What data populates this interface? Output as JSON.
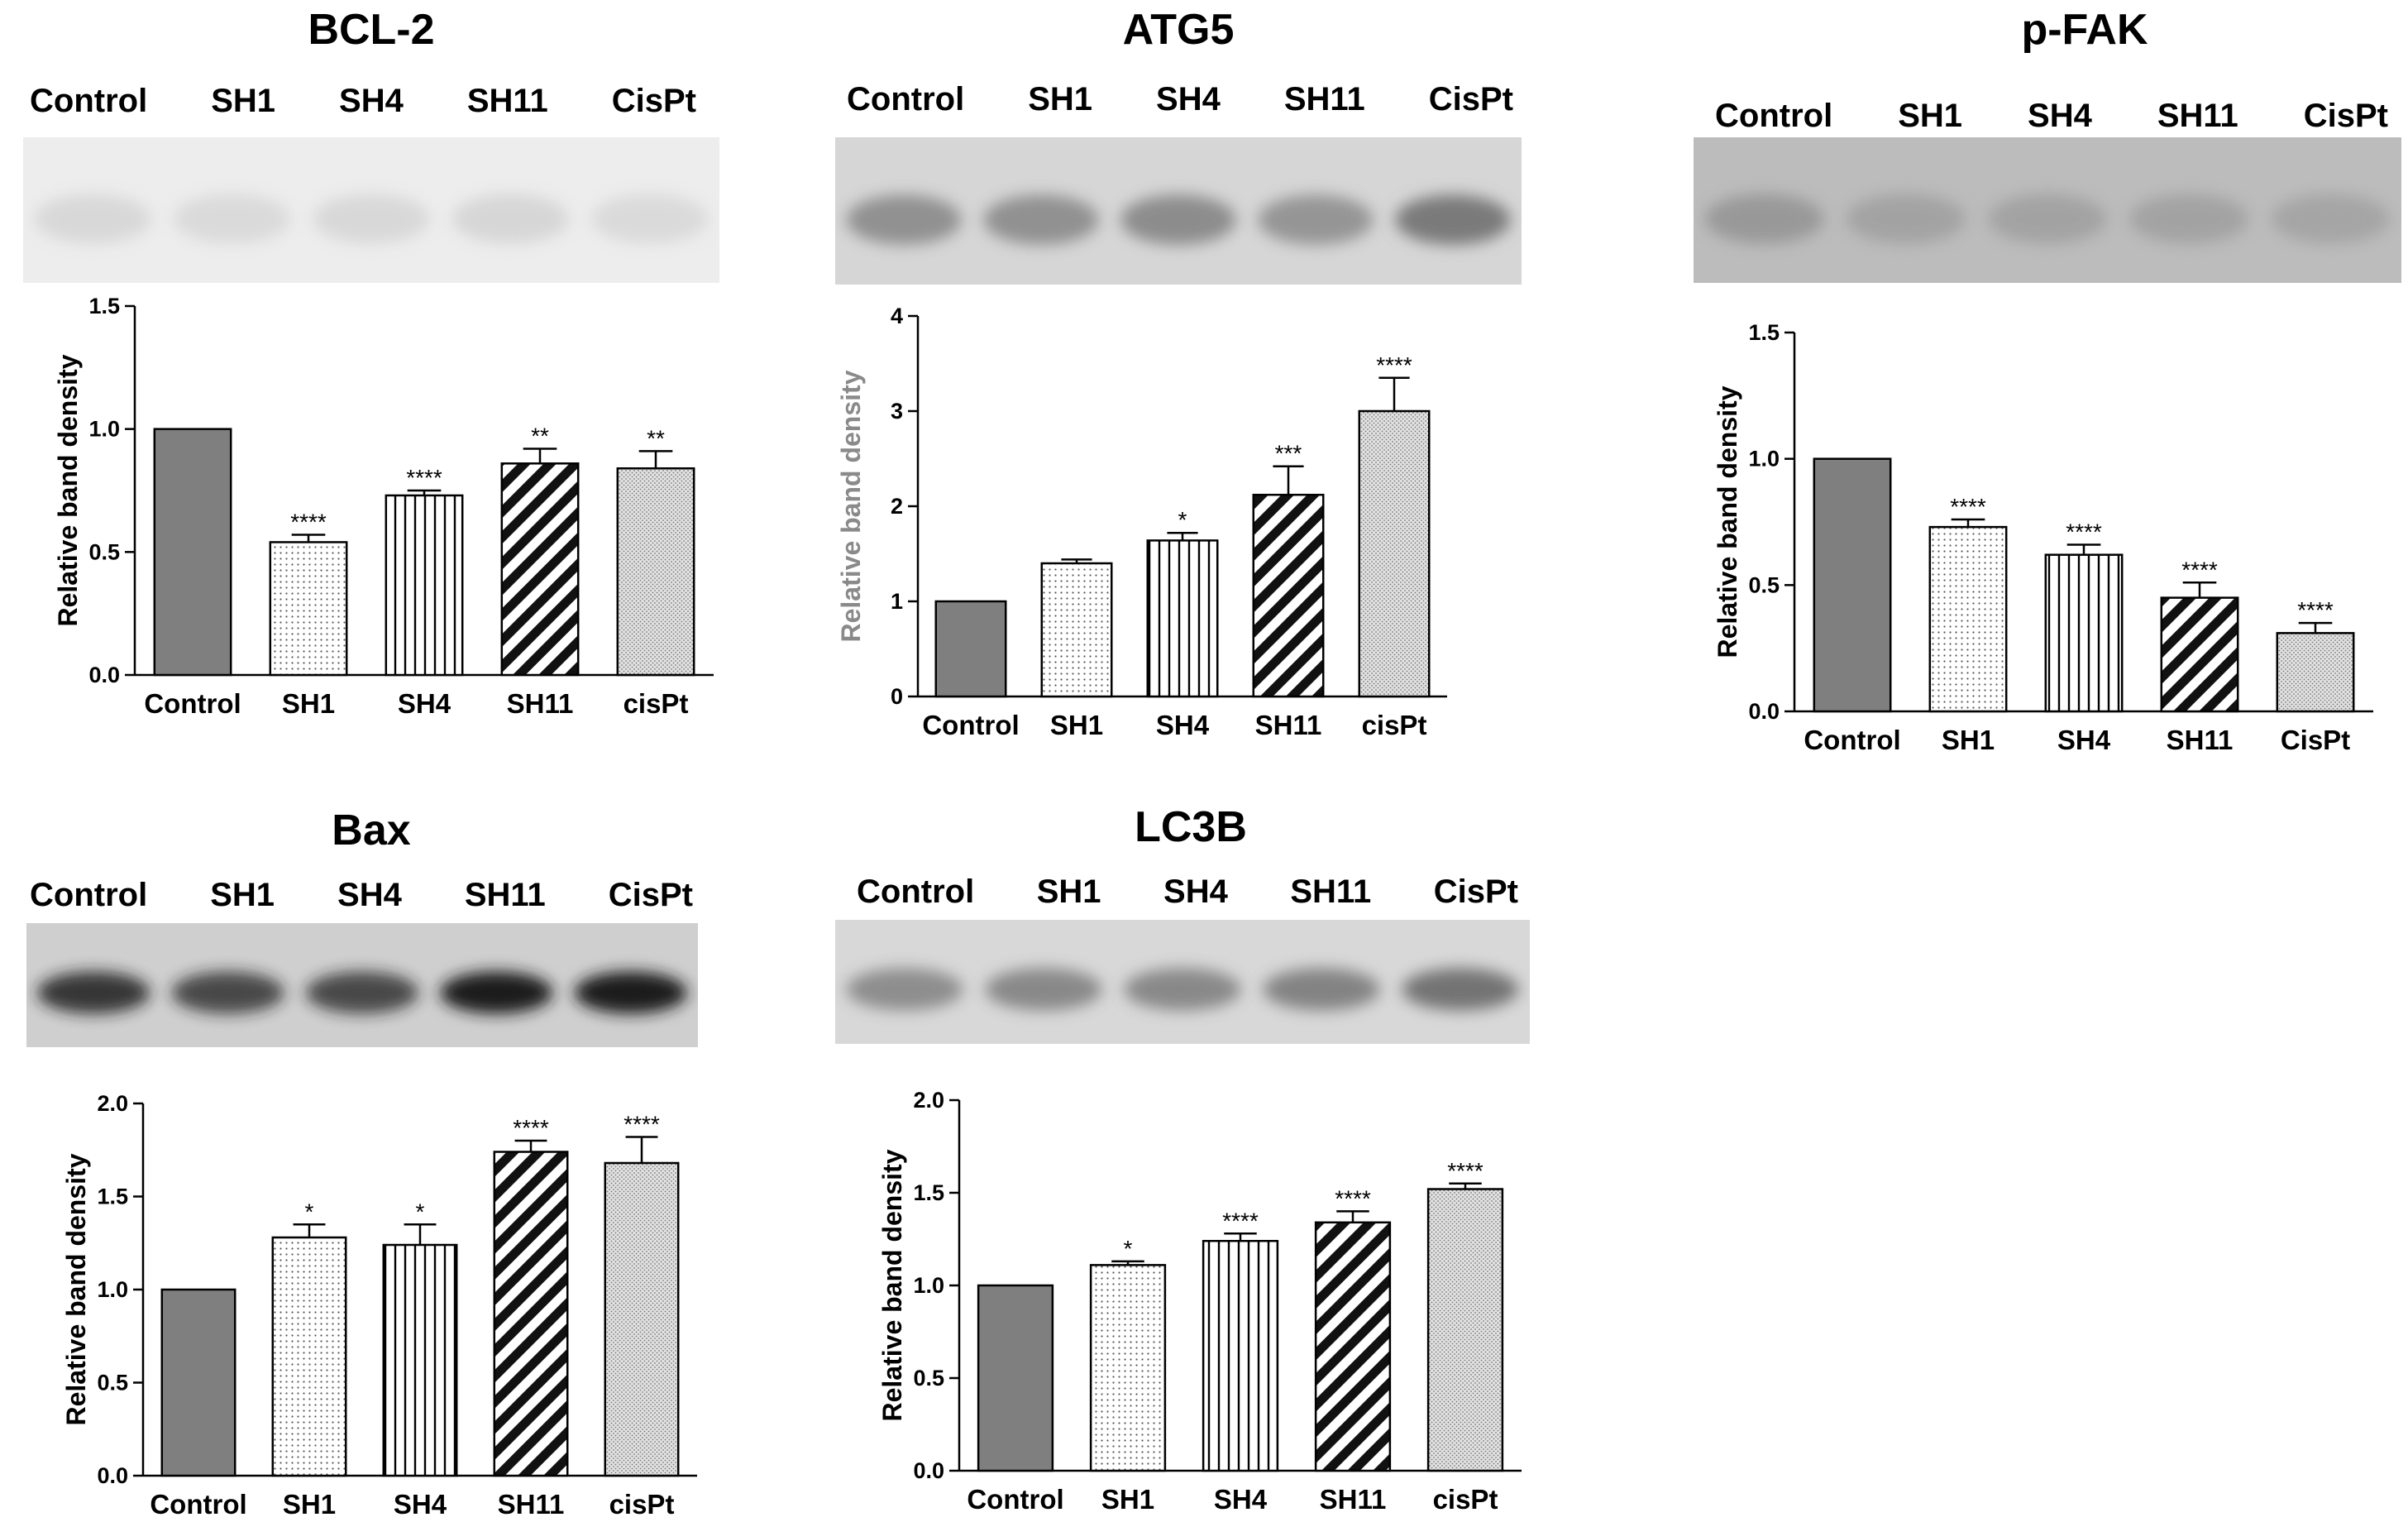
{
  "panels": [
    {
      "id": "bcl2",
      "title": "BCL-2",
      "lanes": [
        "Control",
        "SH1",
        "SH4",
        "SH11",
        "CisPt"
      ],
      "blot_bg": "#ededed",
      "band_color": "#c8c8c8",
      "band_intensity": [
        0.55,
        0.5,
        0.55,
        0.6,
        0.5
      ]
    },
    {
      "id": "atg5",
      "title": "ATG5",
      "lanes": [
        "Control",
        "SH1",
        "SH4",
        "SH11",
        "CisPt"
      ],
      "blot_bg": "#d6d6d6",
      "band_color": "#7a7a7a",
      "band_intensity": [
        0.75,
        0.75,
        0.8,
        0.7,
        1.0
      ]
    },
    {
      "id": "pfak",
      "title": "p-FAK",
      "lanes": [
        "Control",
        "SH1",
        "SH4",
        "SH11",
        "CisPt"
      ],
      "blot_bg": "#bcbcbc",
      "band_color": "#8a8a8a",
      "band_intensity": [
        0.7,
        0.5,
        0.5,
        0.5,
        0.45
      ]
    },
    {
      "id": "bax",
      "title": "Bax",
      "lanes": [
        "Control",
        "SH1",
        "SH4",
        "SH11",
        "CisPt"
      ],
      "blot_bg": "#cfcfcf",
      "band_color": "#1e1e1e",
      "band_intensity": [
        0.85,
        0.75,
        0.75,
        1.0,
        1.0
      ]
    },
    {
      "id": "lc3b",
      "title": "LC3B",
      "lanes": [
        "Control",
        "SH1",
        "SH4",
        "SH11",
        "CisPt"
      ],
      "blot_bg": "#d8d8d8",
      "band_color": "#6e6e6e",
      "band_intensity": [
        0.7,
        0.75,
        0.75,
        0.8,
        0.95
      ]
    }
  ],
  "chart_data": [
    {
      "id": "bcl2",
      "type": "bar",
      "categories": [
        "Control",
        "SH1",
        "SH4",
        "SH11",
        "cisPt"
      ],
      "values": [
        1.0,
        0.54,
        0.73,
        0.86,
        0.84
      ],
      "errors": [
        0,
        0.03,
        0.02,
        0.06,
        0.07
      ],
      "significance": [
        "",
        "****",
        "****",
        "**",
        "**"
      ],
      "patterns": [
        "solid",
        "dots",
        "vertical",
        "diagonal",
        "fine"
      ],
      "ylabel": "Relative band density",
      "ylim": [
        0,
        1.5
      ],
      "yticks": [
        0.0,
        0.5,
        1.0,
        1.5
      ],
      "ytick_labels": [
        "0.0",
        "0.5",
        "1.0",
        "1.5"
      ],
      "ylabel_color": "#000000"
    },
    {
      "id": "atg5",
      "type": "bar",
      "categories": [
        "Control",
        "SH1",
        "SH4",
        "SH11",
        "cisPt"
      ],
      "values": [
        1.0,
        1.4,
        1.64,
        2.12,
        3.0
      ],
      "errors": [
        0,
        0.04,
        0.08,
        0.3,
        0.35
      ],
      "significance": [
        "",
        "",
        "*",
        "***",
        "****"
      ],
      "patterns": [
        "solid",
        "dots",
        "vertical",
        "diagonal",
        "fine"
      ],
      "ylabel": "Relative band density",
      "ylim": [
        0,
        4
      ],
      "yticks": [
        0,
        1,
        2,
        3,
        4
      ],
      "ytick_labels": [
        "0",
        "1",
        "2",
        "3",
        "4"
      ],
      "ylabel_color": "#8a8a8a"
    },
    {
      "id": "pfak",
      "type": "bar",
      "categories": [
        "Control",
        "SH1",
        "SH4",
        "SH11",
        "CisPt"
      ],
      "values": [
        1.0,
        0.73,
        0.62,
        0.45,
        0.31
      ],
      "errors": [
        0,
        0.03,
        0.04,
        0.06,
        0.04
      ],
      "significance": [
        "",
        "****",
        "****",
        "****",
        "****"
      ],
      "patterns": [
        "solid",
        "dots",
        "vertical",
        "diagonal",
        "fine"
      ],
      "ylabel": "Relative band density",
      "ylim": [
        0,
        1.5
      ],
      "yticks": [
        0.0,
        0.5,
        1.0,
        1.5
      ],
      "ytick_labels": [
        "0.0",
        "0.5",
        "1.0",
        "1.5"
      ],
      "ylabel_color": "#000000"
    },
    {
      "id": "bax",
      "type": "bar",
      "categories": [
        "Control",
        "SH1",
        "SH4",
        "SH11",
        "cisPt"
      ],
      "values": [
        1.0,
        1.28,
        1.24,
        1.74,
        1.68
      ],
      "errors": [
        0,
        0.07,
        0.11,
        0.06,
        0.14
      ],
      "significance": [
        "",
        "*",
        "*",
        "****",
        "****"
      ],
      "patterns": [
        "solid",
        "dots",
        "vertical",
        "diagonal",
        "fine"
      ],
      "ylabel": "Relative band density",
      "ylim": [
        0,
        2.0
      ],
      "yticks": [
        0.0,
        0.5,
        1.0,
        1.5,
        2.0
      ],
      "ytick_labels": [
        "0.0",
        "0.5",
        "1.0",
        "1.5",
        "2.0"
      ],
      "ylabel_color": "#000000"
    },
    {
      "id": "lc3b",
      "type": "bar",
      "categories": [
        "Control",
        "SH1",
        "SH4",
        "SH11",
        "cisPt"
      ],
      "values": [
        1.0,
        1.11,
        1.24,
        1.34,
        1.52
      ],
      "errors": [
        0,
        0.02,
        0.04,
        0.06,
        0.03
      ],
      "significance": [
        "",
        "*",
        "****",
        "****",
        "****"
      ],
      "patterns": [
        "solid",
        "dots",
        "vertical",
        "diagonal",
        "fine"
      ],
      "ylabel": "Relative band density",
      "ylim": [
        0,
        2.0
      ],
      "yticks": [
        0.0,
        0.5,
        1.0,
        1.5,
        2.0
      ],
      "ytick_labels": [
        "0.0",
        "0.5",
        "1.0",
        "1.5",
        "2.0"
      ],
      "ylabel_color": "#000000"
    }
  ],
  "colors": {
    "solid_fill": "#7f7f7f",
    "bar_stroke": "#000000",
    "axis": "#000000"
  }
}
